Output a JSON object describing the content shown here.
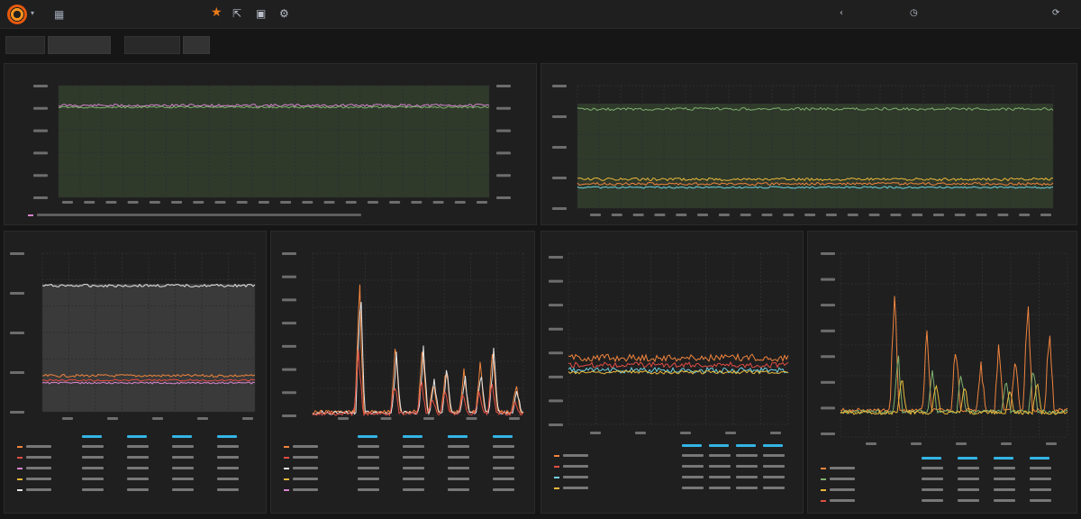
{
  "navbar": {
    "title": "",
    "logo_icon": "grafana-logo-icon",
    "star_icon": "star-icon",
    "share_icon": "share-icon",
    "save_icon": "save-icon",
    "settings_icon": "gear-icon",
    "right_items": [
      "",
      "",
      ""
    ]
  },
  "templating": {
    "variables": [
      {
        "label": "",
        "value": ""
      },
      {
        "label": "",
        "value": ""
      }
    ]
  },
  "colors": {
    "background": "#161616",
    "panel": "#1f1f20",
    "accent_blue": "#33b5e5",
    "accent_orange": "#eb7b18",
    "series_green": "#7eb26d",
    "series_yellow": "#eab839",
    "series_blue": "#6ed0e0",
    "series_orange": "#ef843c",
    "series_red": "#e24d42",
    "series_pink": "#d683ce",
    "series_white": "#e6e6e6"
  },
  "panels": [
    {
      "id": "p1",
      "title": "",
      "legend_headers": [],
      "legend_rows": []
    },
    {
      "id": "p2",
      "title": "",
      "legend_headers": [],
      "legend_rows": []
    },
    {
      "id": "p3",
      "title": "",
      "legend_headers": [],
      "legend_rows": [
        {
          "name": "",
          "values": [
            "",
            "",
            "",
            ""
          ]
        },
        {
          "name": "",
          "values": [
            "",
            "",
            "",
            ""
          ]
        },
        {
          "name": "",
          "values": [
            "",
            "",
            "",
            ""
          ]
        },
        {
          "name": "",
          "values": [
            "",
            "",
            "",
            ""
          ]
        },
        {
          "name": "",
          "values": [
            "",
            "",
            "",
            ""
          ]
        }
      ]
    },
    {
      "id": "p4",
      "title": "",
      "legend_headers": [],
      "legend_rows": [
        {
          "name": "",
          "values": [
            "",
            "",
            "",
            ""
          ]
        },
        {
          "name": "",
          "values": [
            "",
            "",
            "",
            ""
          ]
        },
        {
          "name": "",
          "values": [
            "",
            "",
            "",
            ""
          ]
        },
        {
          "name": "",
          "values": [
            "",
            "",
            "",
            ""
          ]
        },
        {
          "name": "",
          "values": [
            "",
            "",
            "",
            ""
          ]
        }
      ]
    },
    {
      "id": "p5",
      "title": "",
      "legend_headers": [],
      "legend_rows": [
        {
          "name": "",
          "values": [
            "",
            "",
            "",
            ""
          ]
        },
        {
          "name": "",
          "values": [
            "",
            "",
            "",
            ""
          ]
        },
        {
          "name": "",
          "values": [
            "",
            "",
            "",
            ""
          ]
        },
        {
          "name": "",
          "values": [
            "",
            "",
            "",
            ""
          ]
        }
      ]
    },
    {
      "id": "p6",
      "title": "",
      "legend_headers": [],
      "legend_rows": [
        {
          "name": "",
          "values": [
            "",
            "",
            "",
            ""
          ]
        },
        {
          "name": "",
          "values": [
            "",
            "",
            "",
            ""
          ]
        },
        {
          "name": "",
          "values": [
            "",
            "",
            "",
            ""
          ]
        },
        {
          "name": "",
          "values": [
            "",
            "",
            "",
            ""
          ]
        }
      ]
    }
  ]
}
